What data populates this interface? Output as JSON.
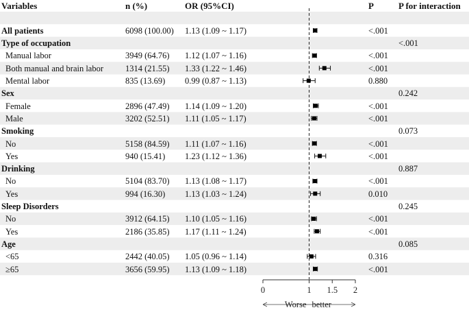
{
  "columns": {
    "variables": "Variables",
    "n": "n (%)",
    "or": "OR (95%CI)",
    "p": "P",
    "p_interaction": "P for interaction"
  },
  "chart_data": {
    "type": "forest",
    "reference_line": 1,
    "xlim": [
      0,
      2
    ],
    "x_ticks": [
      "0",
      "1",
      "1.5",
      "2"
    ],
    "direction_labels": {
      "left": "Worse",
      "right": "better"
    },
    "rows": [
      {
        "kind": "blank",
        "label": ""
      },
      {
        "kind": "data",
        "label": "All patients",
        "bold": true,
        "n": "6098 (100.00)",
        "or_text": "1.13 (1.09 ~ 1.17)",
        "or": 1.13,
        "lo": 1.09,
        "hi": 1.17,
        "p": "<.001",
        "p_int": ""
      },
      {
        "kind": "group",
        "label": "Type of occupation",
        "p_int": "<.001"
      },
      {
        "kind": "data",
        "label": "Manual labor",
        "n": "3949 (64.76)",
        "or_text": "1.12 (1.07 ~ 1.16)",
        "or": 1.12,
        "lo": 1.07,
        "hi": 1.16,
        "p": "<.001",
        "p_int": ""
      },
      {
        "kind": "data",
        "label": "Both manual and brain labor",
        "n": "1314 (21.55)",
        "or_text": "1.33 (1.22 ~ 1.46)",
        "or": 1.33,
        "lo": 1.22,
        "hi": 1.46,
        "p": "<.001",
        "p_int": ""
      },
      {
        "kind": "data",
        "label": "Mental labor",
        "n": "835 (13.69)",
        "or_text": "0.99 (0.87 ~ 1.13)",
        "or": 0.99,
        "lo": 0.87,
        "hi": 1.13,
        "p": "0.880",
        "p_int": ""
      },
      {
        "kind": "group",
        "label": "Sex",
        "p_int": "0.242"
      },
      {
        "kind": "data",
        "label": "Female",
        "n": "2896 (47.49)",
        "or_text": "1.14 (1.09 ~ 1.20)",
        "or": 1.14,
        "lo": 1.09,
        "hi": 1.2,
        "p": "<.001",
        "p_int": ""
      },
      {
        "kind": "data",
        "label": "Male",
        "n": "3202 (52.51)",
        "or_text": "1.11 (1.05 ~ 1.17)",
        "or": 1.11,
        "lo": 1.05,
        "hi": 1.17,
        "p": "<.001",
        "p_int": ""
      },
      {
        "kind": "group",
        "label": "Smoking",
        "p_int": "0.073"
      },
      {
        "kind": "data",
        "label": "No",
        "n": "5158 (84.59)",
        "or_text": "1.11 (1.07 ~ 1.16)",
        "or": 1.11,
        "lo": 1.07,
        "hi": 1.16,
        "p": "<.001",
        "p_int": ""
      },
      {
        "kind": "data",
        "label": "Yes",
        "n": "940 (15.41)",
        "or_text": "1.23 (1.12 ~ 1.36)",
        "or": 1.23,
        "lo": 1.12,
        "hi": 1.36,
        "p": "<.001",
        "p_int": ""
      },
      {
        "kind": "group",
        "label": "Drinking",
        "p_int": "0.887"
      },
      {
        "kind": "data",
        "label": "No",
        "n": "5104 (83.70)",
        "or_text": "1.13 (1.08 ~ 1.17)",
        "or": 1.13,
        "lo": 1.08,
        "hi": 1.17,
        "p": "<.001",
        "p_int": ""
      },
      {
        "kind": "data",
        "label": "Yes",
        "n": "994 (16.30)",
        "or_text": "1.13 (1.03 ~ 1.24)",
        "or": 1.13,
        "lo": 1.03,
        "hi": 1.24,
        "p": "0.010",
        "p_int": ""
      },
      {
        "kind": "group",
        "label": "Sleep Disorders",
        "p_int": "0.245"
      },
      {
        "kind": "data",
        "label": "No",
        "n": "3912 (64.15)",
        "or_text": "1.10 (1.05 ~ 1.16)",
        "or": 1.1,
        "lo": 1.05,
        "hi": 1.16,
        "p": "<.001",
        "p_int": ""
      },
      {
        "kind": "data",
        "label": "Yes",
        "n": "2186 (35.85)",
        "or_text": "1.17 (1.11 ~ 1.24)",
        "or": 1.17,
        "lo": 1.11,
        "hi": 1.24,
        "p": "<.001",
        "p_int": ""
      },
      {
        "kind": "group",
        "label": "Age",
        "p_int": "0.085"
      },
      {
        "kind": "data",
        "label": "<65",
        "n": "2442 (40.05)",
        "or_text": "1.05 (0.96 ~ 1.14)",
        "or": 1.05,
        "lo": 0.96,
        "hi": 1.14,
        "p": "0.316",
        "p_int": ""
      },
      {
        "kind": "data",
        "label": "≥65",
        "n": "3656 (59.95)",
        "or_text": "1.13 (1.09 ~ 1.18)",
        "or": 1.13,
        "lo": 1.09,
        "hi": 1.18,
        "p": "<.001",
        "p_int": ""
      }
    ]
  }
}
